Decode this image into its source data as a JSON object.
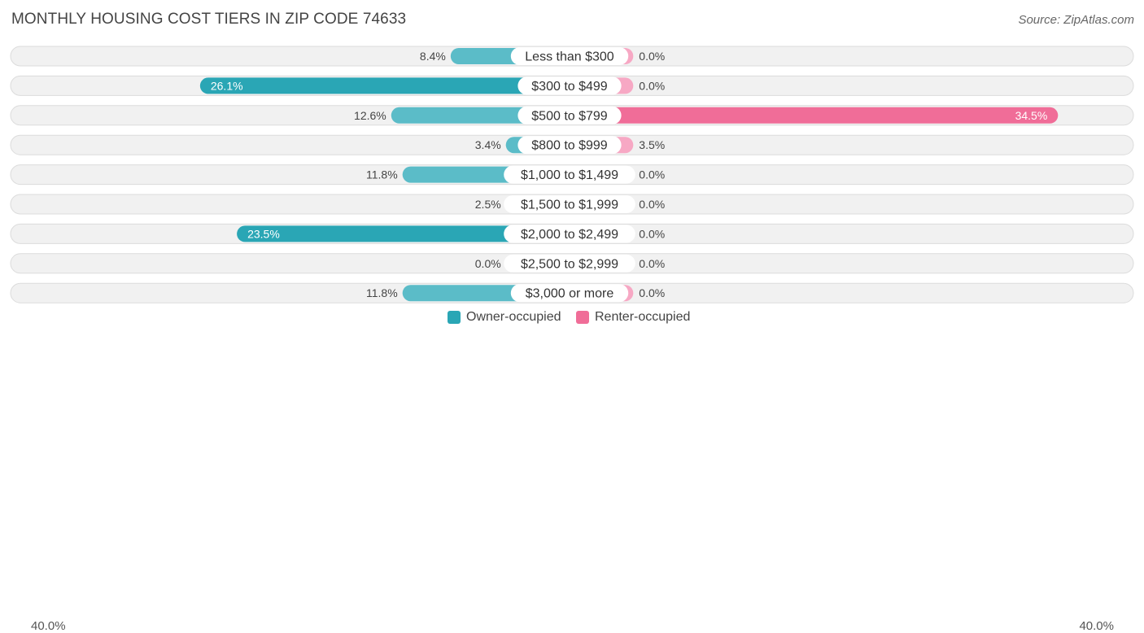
{
  "title": "MONTHLY HOUSING COST TIERS IN ZIP CODE 74633",
  "source": "Source: ZipAtlas.com",
  "colors": {
    "owner": "#5bbcc8",
    "owner_strong": "#2aa6b5",
    "renter": "#f7a8c4",
    "renter_strong": "#f06d98",
    "row_bg": "#f1f1f1",
    "row_border": "#dcdcdc"
  },
  "legend": {
    "owner_label": "Owner-occupied",
    "renter_label": "Renter-occupied",
    "axis_left": "40.0%",
    "axis_right": "40.0%"
  },
  "chart_data": {
    "type": "bar",
    "orientation": "horizontal-diverging",
    "xlim": [
      -40,
      40
    ],
    "categories": [
      "Less than $300",
      "$300 to $499",
      "$500 to $799",
      "$800 to $999",
      "$1,000 to $1,499",
      "$1,500 to $1,999",
      "$2,000 to $2,499",
      "$2,500 to $2,999",
      "$3,000 or more"
    ],
    "series": [
      {
        "name": "Owner-occupied",
        "values": [
          8.4,
          26.1,
          12.6,
          3.4,
          11.8,
          2.5,
          23.5,
          0.0,
          11.8
        ],
        "labels": [
          "8.4%",
          "26.1%",
          "12.6%",
          "3.4%",
          "11.8%",
          "2.5%",
          "23.5%",
          "0.0%",
          "11.8%"
        ]
      },
      {
        "name": "Renter-occupied",
        "values": [
          0.0,
          0.0,
          34.5,
          3.5,
          0.0,
          0.0,
          0.0,
          0.0,
          0.0
        ],
        "labels": [
          "0.0%",
          "0.0%",
          "34.5%",
          "3.5%",
          "0.0%",
          "0.0%",
          "0.0%",
          "0.0%",
          "0.0%"
        ]
      }
    ]
  }
}
